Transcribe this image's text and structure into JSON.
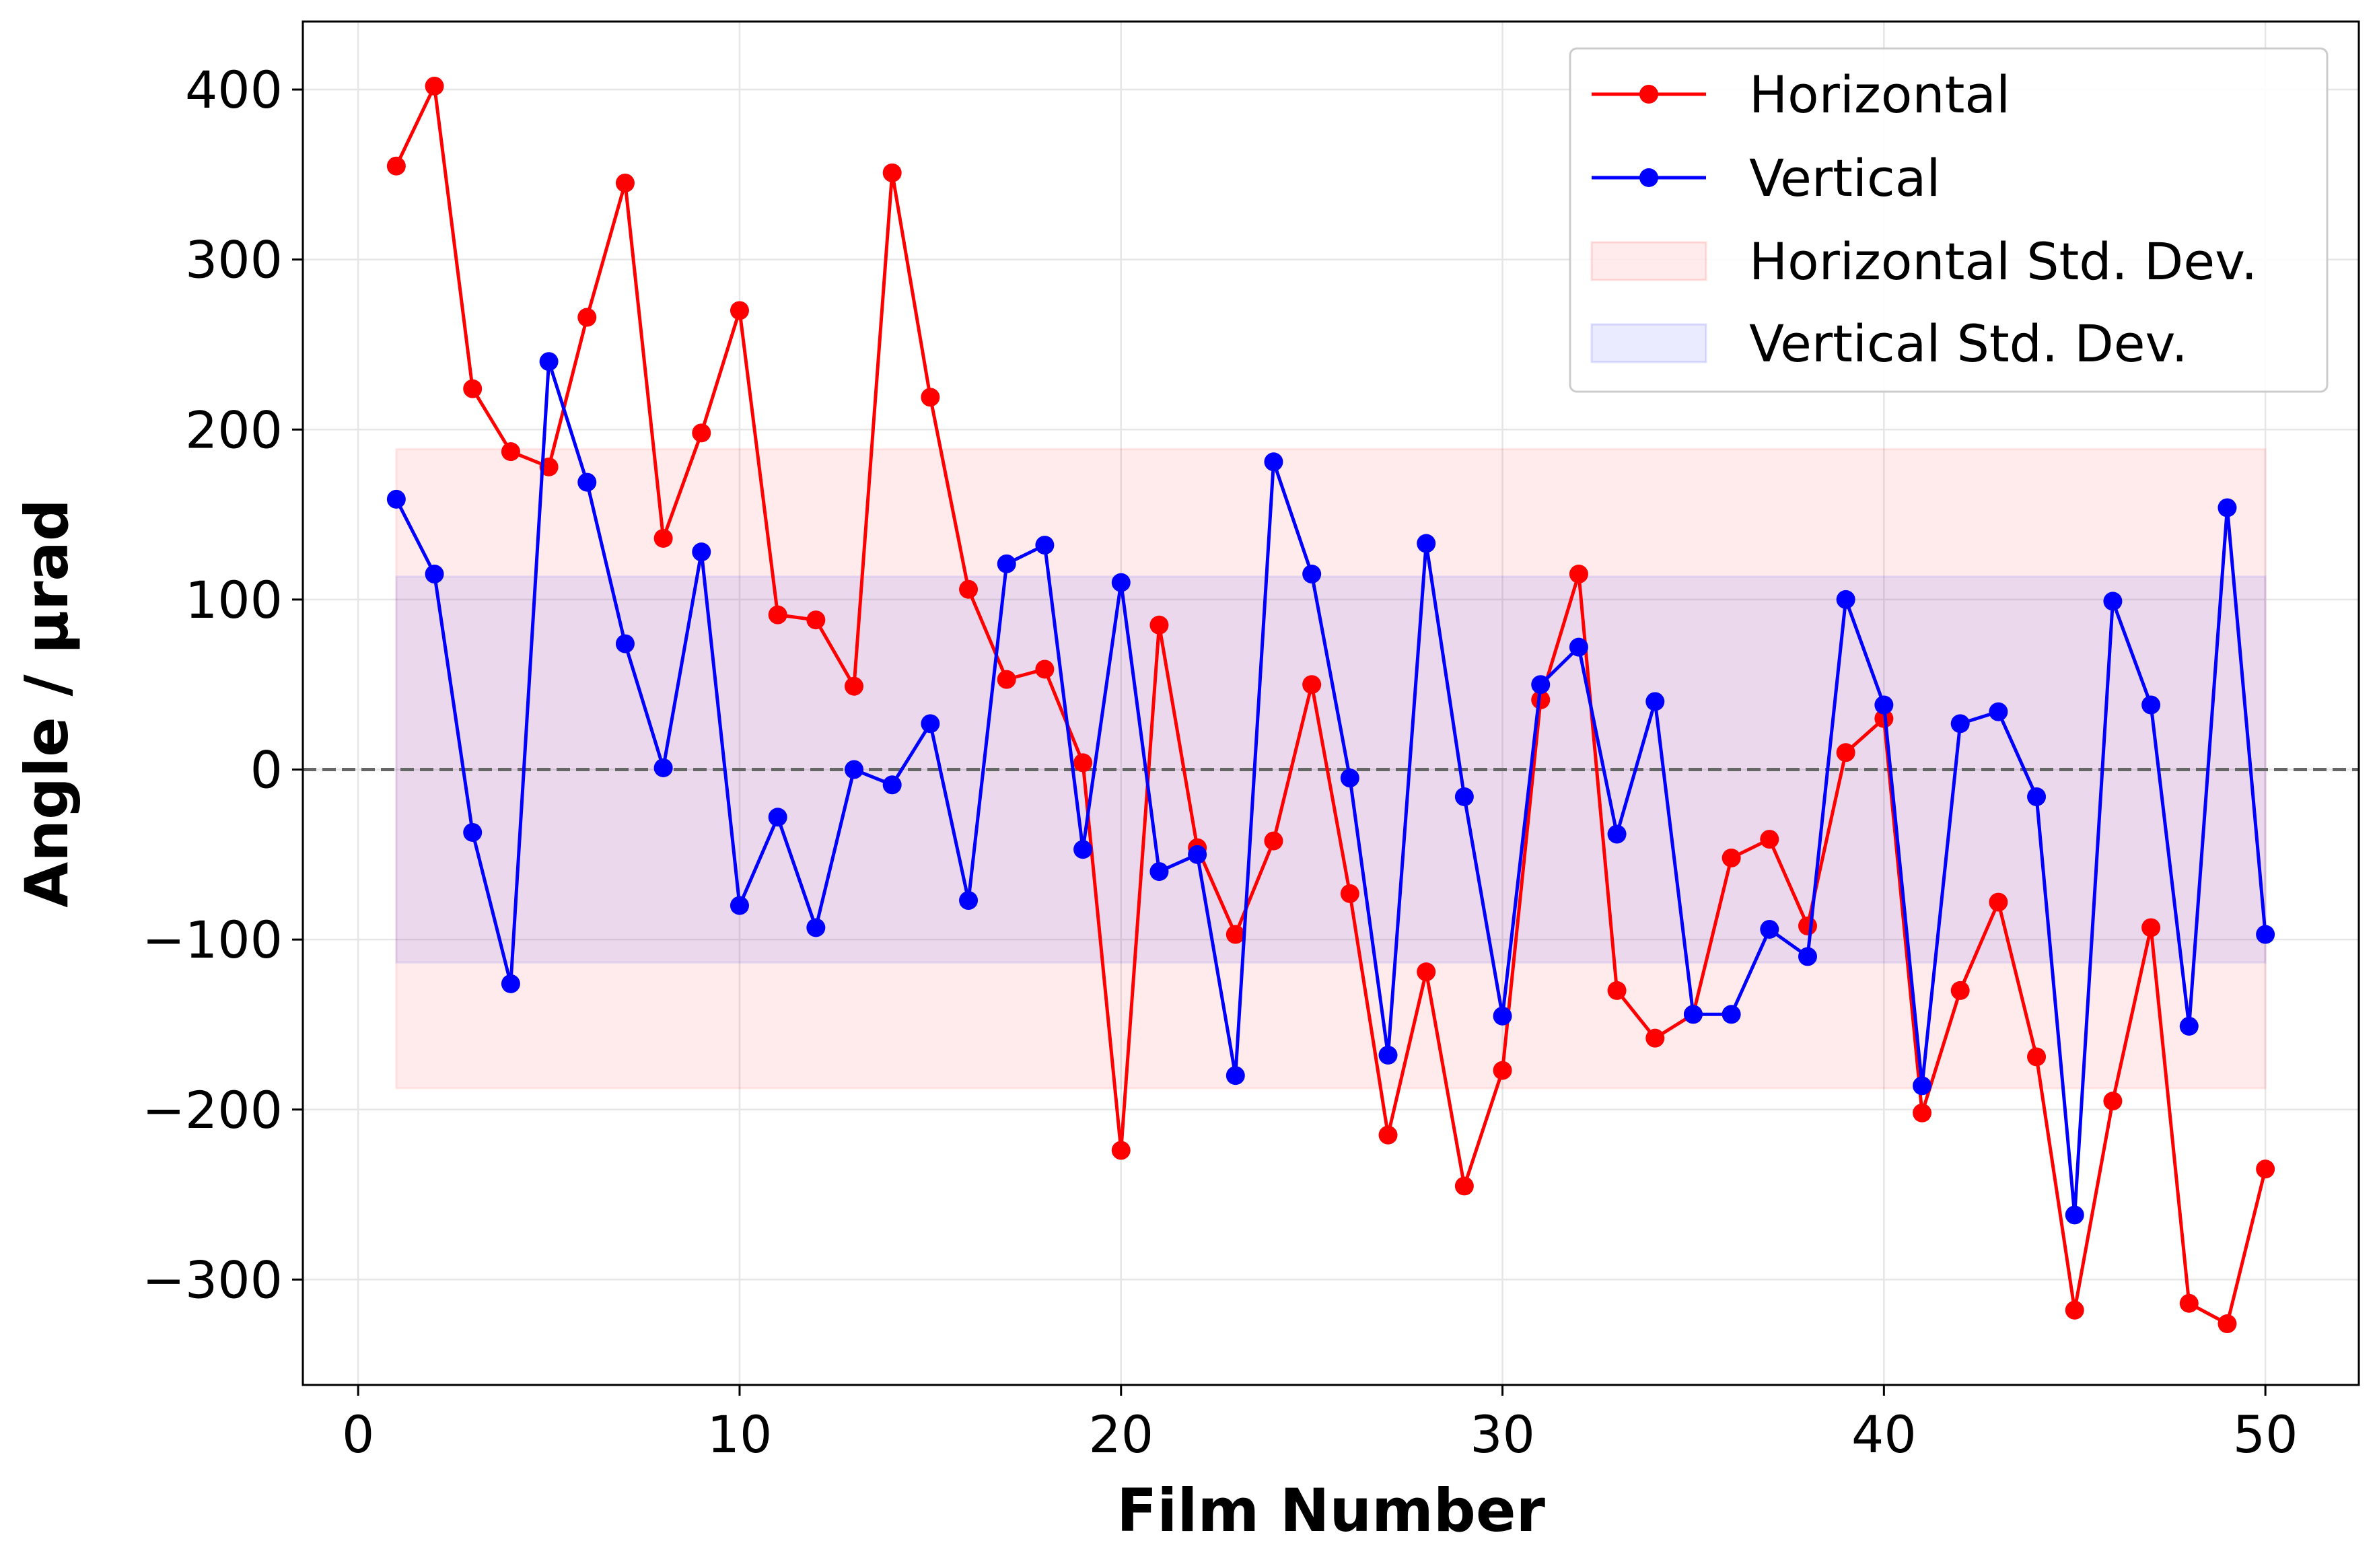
{
  "chart_data": {
    "type": "line",
    "title": "",
    "xlabel": "Film Number",
    "ylabel": "Angle / μrad",
    "xlim": [
      -1.45,
      52.45
    ],
    "ylim": [
      -362,
      440
    ],
    "xticks": [
      0,
      10,
      20,
      30,
      40,
      50
    ],
    "yticks": [
      -300,
      -200,
      -100,
      0,
      100,
      200,
      300,
      400
    ],
    "xtick_labels": [
      "0",
      "10",
      "20",
      "30",
      "40",
      "50"
    ],
    "ytick_labels": [
      "−300",
      "−200",
      "−100",
      "0",
      "100",
      "200",
      "300",
      "400"
    ],
    "grid": true,
    "legend_position": "upper right",
    "reference_line": {
      "y": 0,
      "style": "dashed",
      "color": "#666666"
    },
    "x": [
      1,
      2,
      3,
      4,
      5,
      6,
      7,
      8,
      9,
      10,
      11,
      12,
      13,
      14,
      15,
      16,
      17,
      18,
      19,
      20,
      21,
      22,
      23,
      24,
      25,
      26,
      27,
      28,
      29,
      30,
      31,
      32,
      33,
      34,
      35,
      36,
      37,
      38,
      39,
      40,
      41,
      42,
      43,
      44,
      45,
      46,
      47,
      48,
      49,
      50
    ],
    "series": [
      {
        "name": "Horizontal",
        "color": "#ff0000",
        "marker": "circle",
        "values": [
          355,
          402,
          224,
          187,
          178,
          266,
          345,
          136,
          198,
          270,
          91,
          88,
          49,
          351,
          219,
          106,
          53,
          59,
          4,
          -224,
          85,
          -46,
          -97,
          -42,
          50,
          -73,
          -215,
          -119,
          -245,
          -177,
          41,
          115,
          -130,
          -158,
          -144,
          -52,
          -41,
          -92,
          10,
          30,
          -202,
          -130,
          -78,
          -169,
          -318,
          -195,
          -93,
          -314,
          -326,
          -235
        ]
      },
      {
        "name": "Vertical",
        "color": "#0000ff",
        "marker": "circle",
        "values": [
          159,
          115,
          -37,
          -126,
          240,
          169,
          74,
          1,
          128,
          -80,
          -28,
          -93,
          0,
          -9,
          27,
          -77,
          121,
          132,
          -47,
          110,
          -60,
          -50,
          -180,
          181,
          115,
          -5,
          -168,
          133,
          -16,
          -145,
          50,
          72,
          -38,
          40,
          -144,
          -144,
          -94,
          -110,
          100,
          38,
          -186,
          27,
          34,
          -16,
          -262,
          99,
          38,
          -151,
          154,
          -97
        ]
      }
    ],
    "bands": [
      {
        "name": "Horizontal Std. Dev.",
        "x_range": [
          1,
          50
        ],
        "y_range": [
          -187.5,
          188.5
        ],
        "color": "#ff0000",
        "alpha": 0.08
      },
      {
        "name": "Vertical Std. Dev.",
        "x_range": [
          1,
          50
        ],
        "y_range": [
          -113.5,
          113.5
        ],
        "color": "#0000ff",
        "alpha": 0.08
      }
    ]
  }
}
